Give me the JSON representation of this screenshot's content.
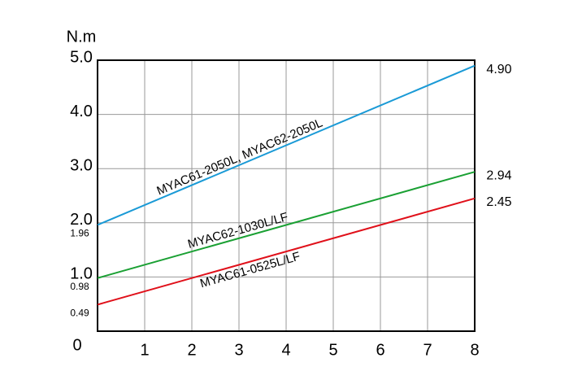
{
  "chart_data": {
    "type": "line",
    "y_label": "N.m",
    "xticks": [
      1,
      2,
      3,
      4,
      5,
      6,
      7,
      8
    ],
    "yticks": [
      {
        "value": 0,
        "label": "0"
      },
      {
        "value": 1,
        "label": "1.0"
      },
      {
        "value": 2,
        "label": "2.0"
      },
      {
        "value": 3,
        "label": "3.0"
      },
      {
        "value": 4,
        "label": "4.0"
      },
      {
        "value": 5,
        "label": "5.0"
      }
    ],
    "xlim": [
      0,
      8
    ],
    "ylim": [
      0,
      5
    ],
    "grid": true,
    "x": [
      0,
      8
    ],
    "series": [
      {
        "name": "MYAC61-2050L, MYAC62-2050L",
        "color": "#1a9ad6",
        "values": [
          1.96,
          4.9
        ],
        "value_labels": [
          "1.96",
          "4.90"
        ]
      },
      {
        "name": "MYAC62-1030L/LF",
        "color": "#1aa033",
        "values": [
          0.98,
          2.94
        ],
        "value_labels": [
          "0.98",
          "2.94"
        ]
      },
      {
        "name": "MYAC61-0525L/LF",
        "color": "#e0101a",
        "values": [
          0.49,
          2.45
        ],
        "value_labels": [
          "0.49",
          "2.45"
        ]
      }
    ]
  }
}
